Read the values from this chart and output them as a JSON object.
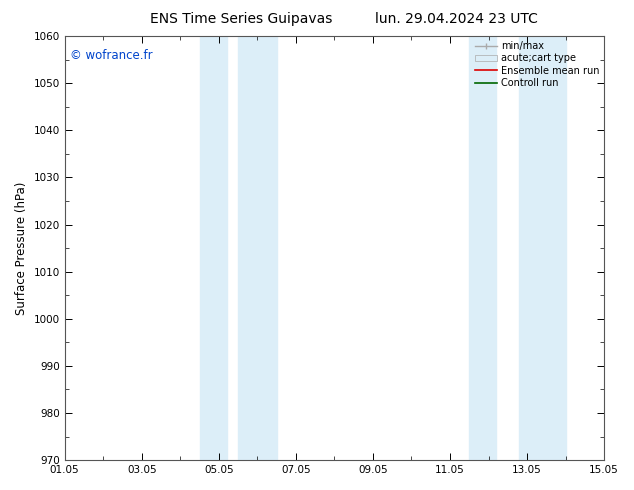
{
  "title": "ENS Time Series Guipavas",
  "title2": "lun. 29.04.2024 23 UTC",
  "ylabel": "Surface Pressure (hPa)",
  "ylim": [
    970,
    1060
  ],
  "yticks": [
    970,
    980,
    990,
    1000,
    1010,
    1020,
    1030,
    1040,
    1050,
    1060
  ],
  "xlim": [
    0,
    14
  ],
  "xtick_labels": [
    "01.05",
    "03.05",
    "05.05",
    "07.05",
    "09.05",
    "11.05",
    "13.05",
    "15.05"
  ],
  "xtick_positions": [
    0,
    2,
    4,
    6,
    8,
    10,
    12,
    14
  ],
  "shaded_bands": [
    {
      "xmin": 3.5,
      "xmax": 4.2
    },
    {
      "xmin": 4.5,
      "xmax": 5.5
    },
    {
      "xmin": 10.5,
      "xmax": 11.2
    },
    {
      "xmin": 11.8,
      "xmax": 13.0
    }
  ],
  "shade_color": "#dceef8",
  "bg_color": "#ffffff",
  "watermark_text": "© wofrance.fr",
  "watermark_color": "#0044cc",
  "title_fontsize": 10,
  "tick_fontsize": 7.5,
  "ylabel_fontsize": 8.5,
  "legend_fontsize": 7
}
